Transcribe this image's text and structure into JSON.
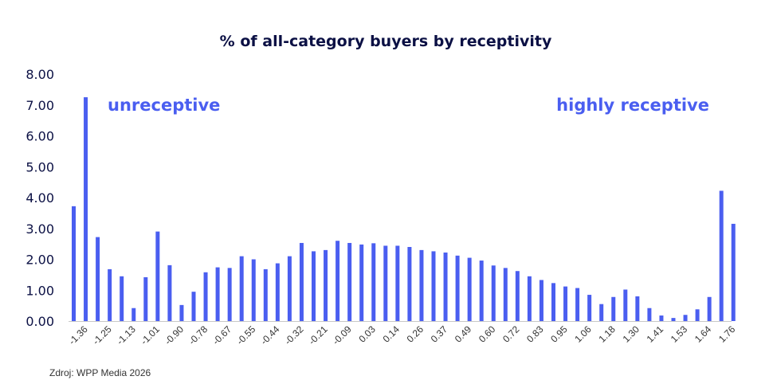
{
  "chart_data": {
    "type": "bar",
    "title": "% of all-category buyers by receptivity",
    "xlabel": "",
    "ylabel": "",
    "ylim": [
      0,
      8
    ],
    "y_ticks": [
      "0.00",
      "1.00",
      "2.00",
      "3.00",
      "4.00",
      "5.00",
      "6.00",
      "7.00",
      "8.00"
    ],
    "grid": false,
    "bar_color": "#4a5ef0",
    "x_tick_labels": [
      "-1.36",
      "-1.25",
      "-1.13",
      "-1.01",
      "-0.90",
      "-0.78",
      "-0.67",
      "-0.55",
      "-0.44",
      "-0.32",
      "-0.21",
      "-0.09",
      "0.03",
      "0.14",
      "0.26",
      "0.37",
      "0.49",
      "0.60",
      "0.72",
      "0.83",
      "0.95",
      "1.06",
      "1.18",
      "1.30",
      "1.41",
      "1.53",
      "1.64",
      "1.76"
    ],
    "values": [
      3.72,
      7.25,
      2.72,
      1.68,
      1.45,
      0.42,
      1.42,
      2.9,
      1.81,
      0.52,
      0.95,
      1.58,
      1.74,
      1.72,
      2.1,
      2.0,
      1.68,
      1.87,
      2.1,
      2.53,
      2.26,
      2.3,
      2.6,
      2.53,
      2.48,
      2.52,
      2.44,
      2.44,
      2.4,
      2.3,
      2.26,
      2.22,
      2.12,
      2.05,
      1.96,
      1.8,
      1.72,
      1.62,
      1.45,
      1.33,
      1.23,
      1.12,
      1.07,
      0.85,
      0.55,
      0.78,
      1.02,
      0.8,
      0.42,
      0.18,
      0.1,
      0.2,
      0.38,
      0.78,
      4.22,
      3.15
    ],
    "annotations": [
      {
        "text": "unreceptive",
        "position": "top-left"
      },
      {
        "text": "highly receptive",
        "position": "top-right"
      }
    ]
  },
  "source": "Zdroj: WPP Media 2026"
}
